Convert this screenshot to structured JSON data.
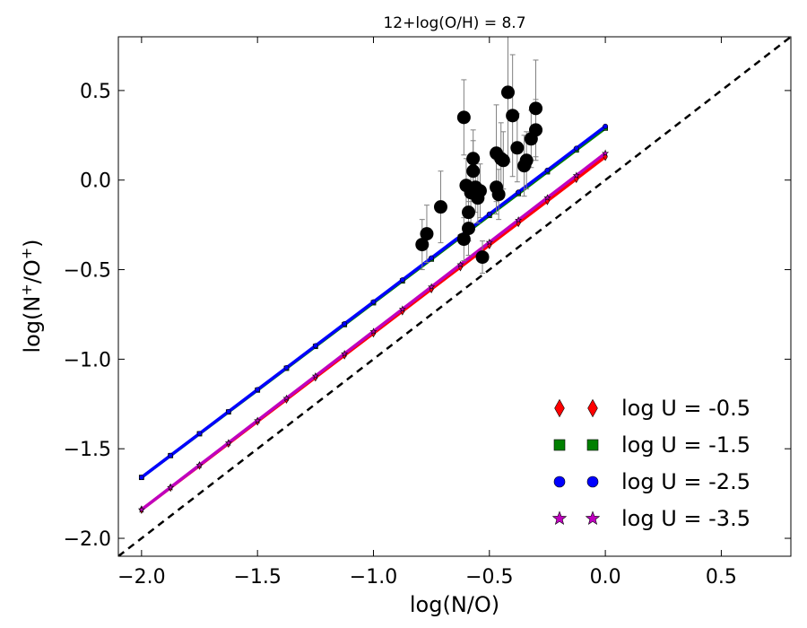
{
  "chart_data": {
    "type": "line",
    "title": "12+log(O/H) = 8.7",
    "xlabel": "log(N/O)",
    "ylabel_parts": [
      "log(N",
      "+",
      "/O",
      "+",
      ")"
    ],
    "xlim": [
      -2.1,
      0.8
    ],
    "ylim": [
      -2.1,
      0.8
    ],
    "x_ticks": [
      -2.0,
      -1.5,
      -1.0,
      -0.5,
      0.0,
      0.5
    ],
    "x_tick_labels": [
      "−2.0",
      "−1.5",
      "−1.0",
      "−0.5",
      "0.0",
      "0.5"
    ],
    "y_ticks": [
      -2.0,
      -1.5,
      -1.0,
      -0.5,
      0.0,
      0.5
    ],
    "y_tick_labels": [
      "−2.0",
      "−1.5",
      "−1.0",
      "−0.5",
      "0.0",
      "0.5"
    ],
    "identity_line": {
      "style": "dashed",
      "color": "#000000",
      "x": [
        -2.1,
        0.8
      ],
      "y": [
        -2.1,
        0.8
      ]
    },
    "model_x": [
      -2.0,
      -1.875,
      -1.75,
      -1.625,
      -1.5,
      -1.375,
      -1.25,
      -1.125,
      -1.0,
      -0.875,
      -0.75,
      -0.625,
      -0.5,
      -0.375,
      -0.25,
      -0.125,
      0.0
    ],
    "series": [
      {
        "name": "log U = -0.5",
        "color": "#ff0000",
        "marker": "diamond",
        "intercept": 0.13,
        "slope": 0.985
      },
      {
        "name": "log U = -1.5",
        "color": "#008000",
        "marker": "square",
        "intercept": 0.29,
        "slope": 0.975
      },
      {
        "name": "log U = -2.5",
        "color": "#0000ff",
        "marker": "circle",
        "intercept": 0.3,
        "slope": 0.98
      },
      {
        "name": "log U = -3.5",
        "color": "#bf00bf",
        "marker": "star",
        "intercept": 0.15,
        "slope": 0.995
      }
    ],
    "observations": {
      "color": "#000000",
      "error_color": "#808080",
      "points": [
        {
          "x": -0.79,
          "y": -0.36,
          "err": 0.14
        },
        {
          "x": -0.77,
          "y": -0.3,
          "err": 0.16
        },
        {
          "x": -0.71,
          "y": -0.15,
          "err": 0.2
        },
        {
          "x": -0.61,
          "y": 0.35,
          "err": 0.21
        },
        {
          "x": -0.61,
          "y": -0.33,
          "err": 0.12
        },
        {
          "x": -0.6,
          "y": -0.03,
          "err": 0.15
        },
        {
          "x": -0.59,
          "y": -0.27,
          "err": 0.15
        },
        {
          "x": -0.59,
          "y": -0.18,
          "err": 0.16
        },
        {
          "x": -0.58,
          "y": -0.07,
          "err": 0.17
        },
        {
          "x": -0.57,
          "y": 0.05,
          "err": 0.17
        },
        {
          "x": -0.57,
          "y": 0.12,
          "err": 0.16
        },
        {
          "x": -0.56,
          "y": -0.04,
          "err": 0.14
        },
        {
          "x": -0.55,
          "y": -0.1,
          "err": 0.14
        },
        {
          "x": -0.54,
          "y": -0.06,
          "err": 0.15
        },
        {
          "x": -0.53,
          "y": -0.43,
          "err": 0.09
        },
        {
          "x": -0.47,
          "y": 0.15,
          "err": 0.27
        },
        {
          "x": -0.47,
          "y": -0.04,
          "err": 0.15
        },
        {
          "x": -0.46,
          "y": -0.08,
          "err": 0.14
        },
        {
          "x": -0.45,
          "y": 0.12,
          "err": 0.2
        },
        {
          "x": -0.44,
          "y": 0.11,
          "err": 0.16
        },
        {
          "x": -0.42,
          "y": 0.49,
          "err": 0.39
        },
        {
          "x": -0.4,
          "y": 0.36,
          "err": 0.34
        },
        {
          "x": -0.38,
          "y": 0.18,
          "err": 0.19
        },
        {
          "x": -0.35,
          "y": 0.08,
          "err": 0.17
        },
        {
          "x": -0.34,
          "y": 0.11,
          "err": 0.16
        },
        {
          "x": -0.32,
          "y": 0.23,
          "err": 0.16
        },
        {
          "x": -0.3,
          "y": 0.4,
          "err": 0.27
        },
        {
          "x": -0.3,
          "y": 0.28,
          "err": 0.17
        }
      ]
    },
    "legend": {
      "position": "lower-right"
    }
  }
}
